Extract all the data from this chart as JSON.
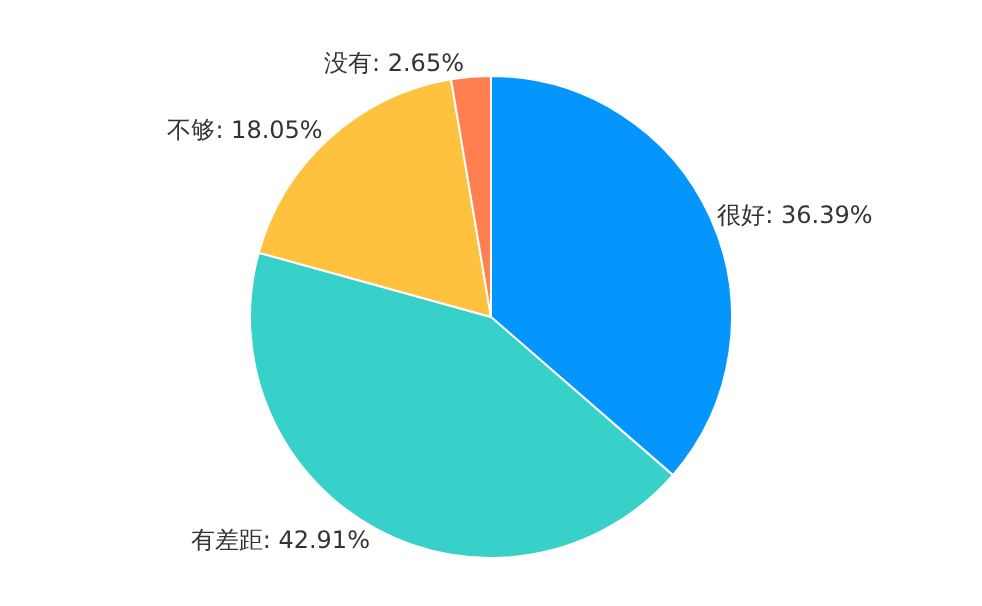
{
  "chart_data": {
    "type": "pie",
    "categories": [
      "很好",
      "有差距",
      "不够",
      "没有"
    ],
    "values": [
      36.39,
      42.91,
      18.05,
      2.65
    ],
    "value_labels": [
      "36.39%",
      "42.91%",
      "18.05%",
      "2.65%"
    ],
    "colors": [
      "#0596fd",
      "#37d1c9",
      "#ffc23e",
      "#ff7f50"
    ],
    "legend": false
  }
}
